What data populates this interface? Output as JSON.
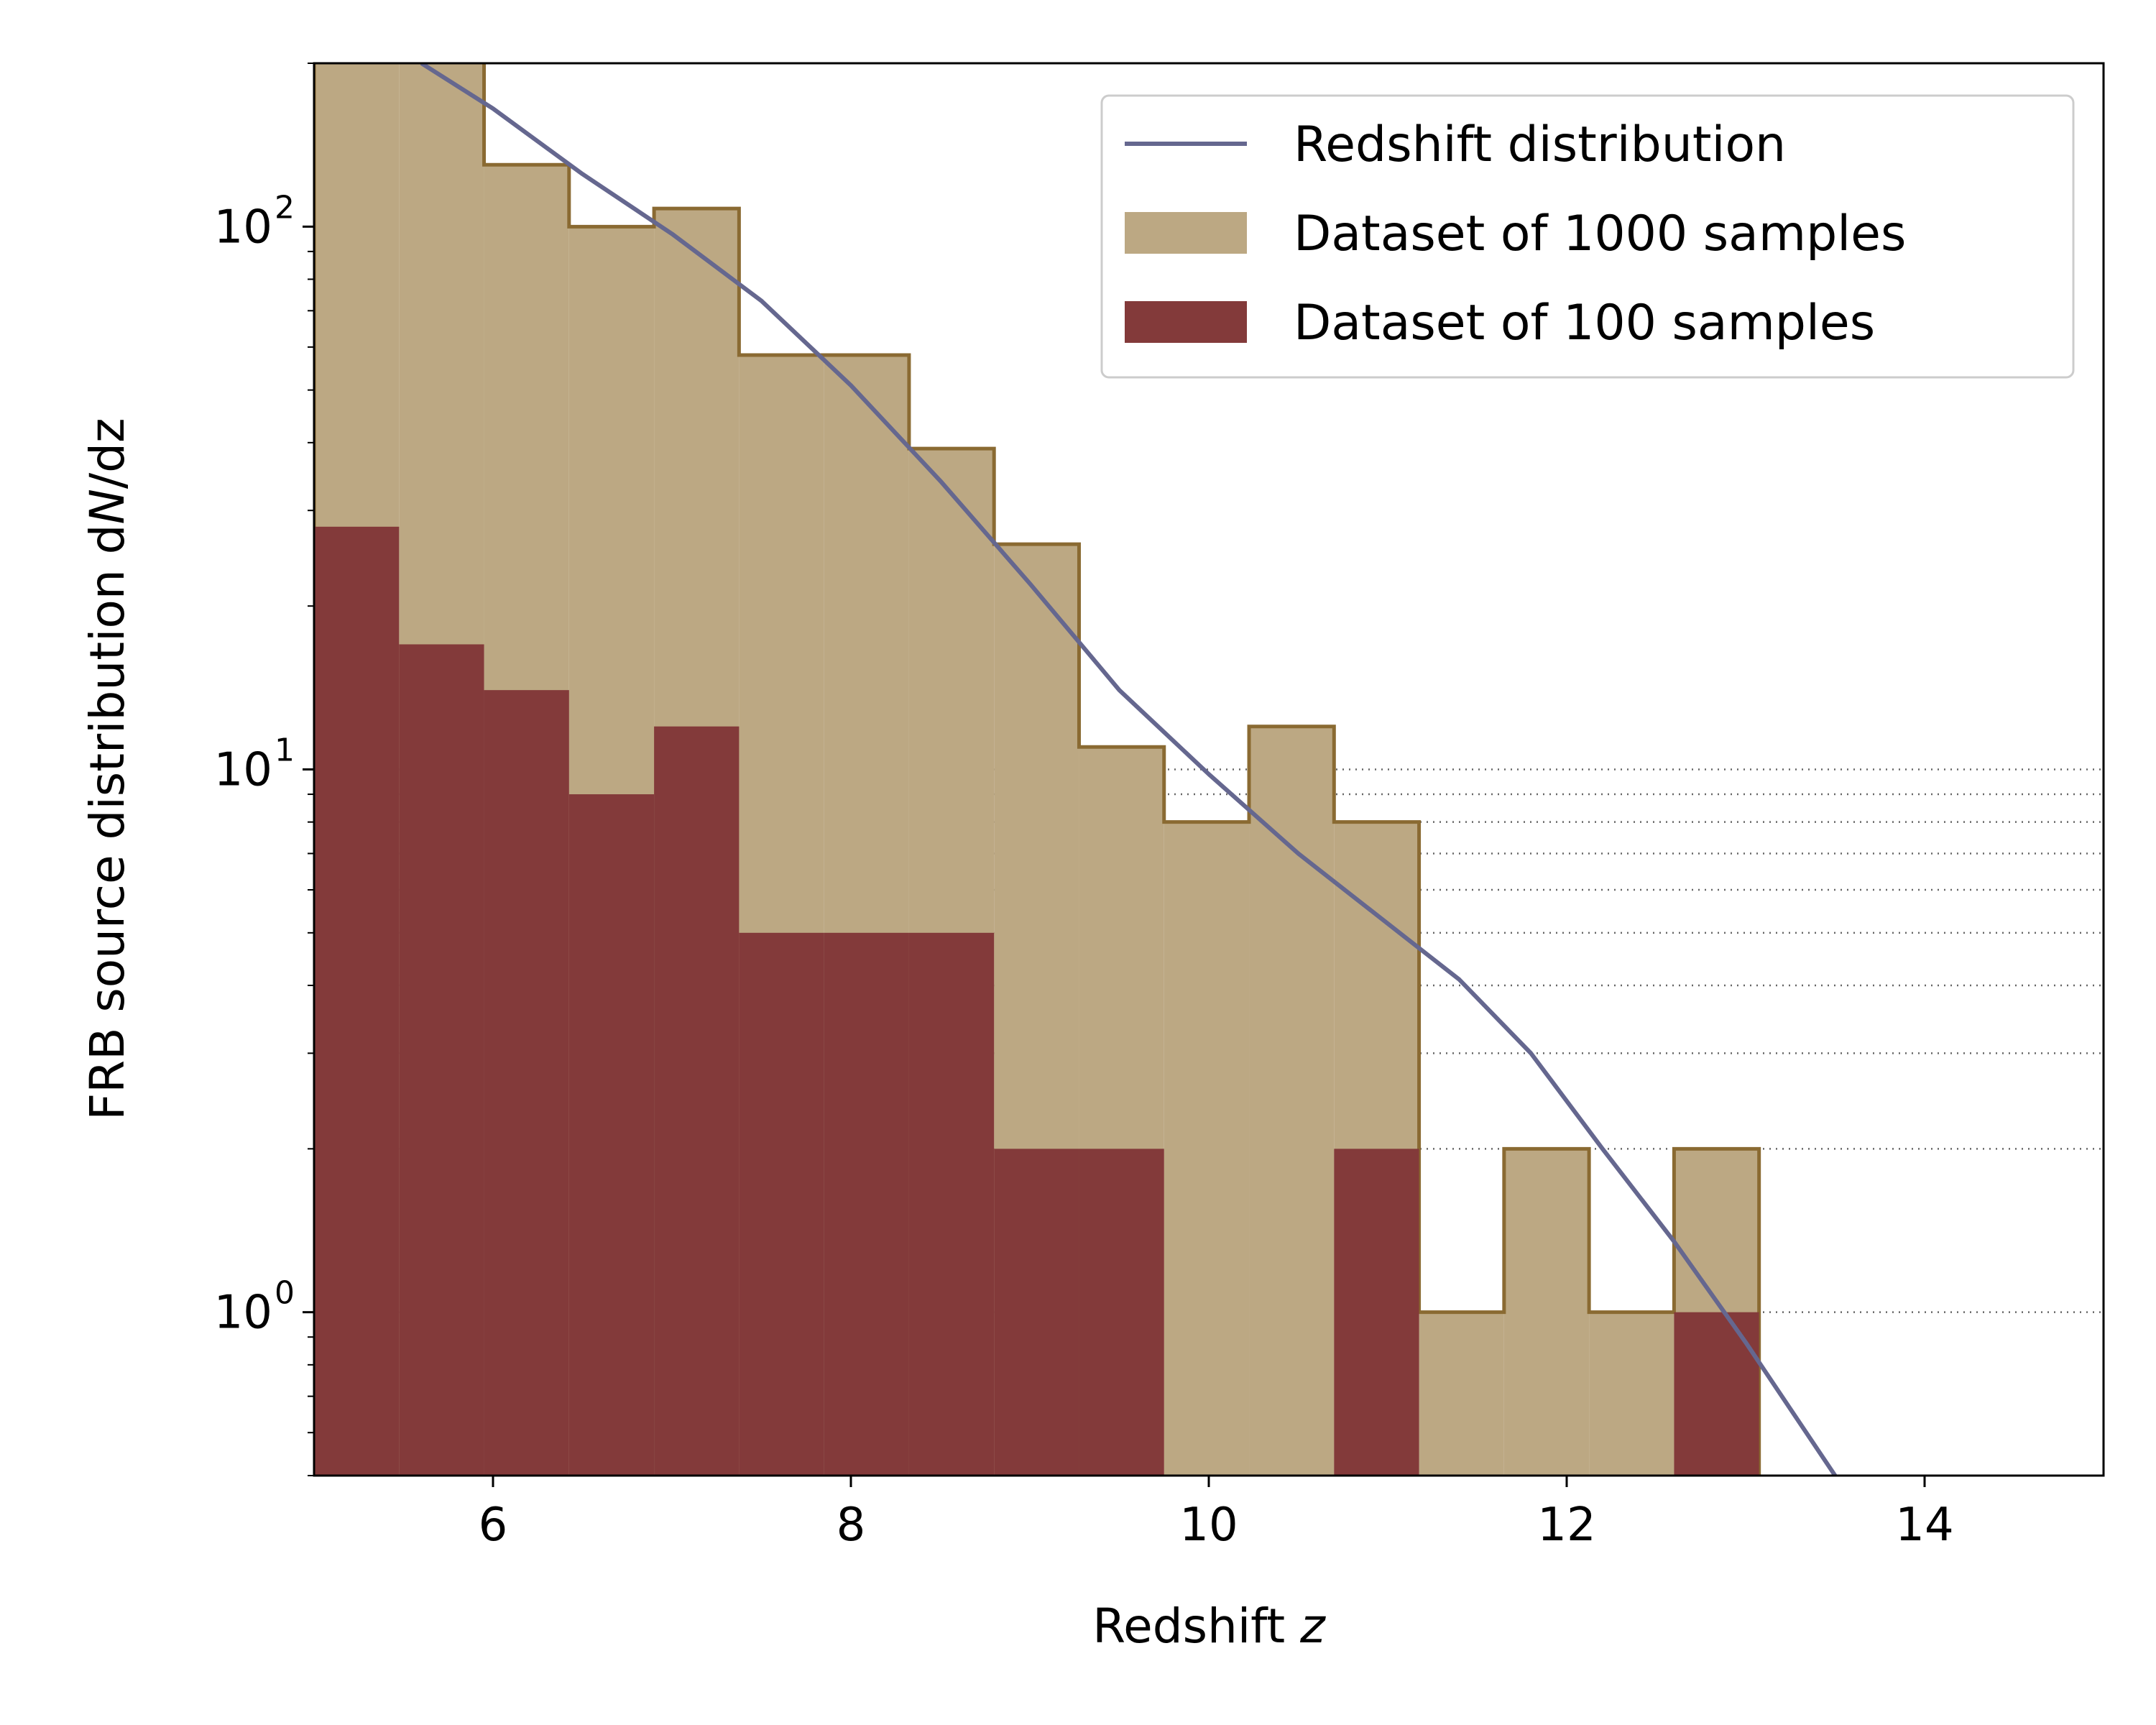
{
  "chart_data": {
    "type": "bar",
    "xlabel": "Redshift",
    "xlabel_var": "z",
    "ylabel_prefix": "FRB source distribution d",
    "ylabel_var": "N",
    "ylabel_suffix": "/dz",
    "xlim": [
      5.0,
      15.0
    ],
    "ylim": [
      0.5,
      200
    ],
    "yscale": "log",
    "x_ticks": [
      {
        "value": 6,
        "label": "6"
      },
      {
        "value": 8,
        "label": "8"
      },
      {
        "value": 10,
        "label": "10"
      },
      {
        "value": 12,
        "label": "12"
      },
      {
        "value": 14,
        "label": "14"
      }
    ],
    "y_ticks": [
      {
        "value": 1,
        "base": "10",
        "exp": "0"
      },
      {
        "value": 10,
        "base": "10",
        "exp": "1"
      },
      {
        "value": 100,
        "base": "10",
        "exp": "2"
      }
    ],
    "grid": "dotted horizontal lines at y minor and major ticks from 1 to 10",
    "legend_position": "top-right",
    "colors": {
      "hist_1000_fill": "#bca883",
      "hist_1000_edge": "#8a6a32",
      "hist_100_fill": "#833a3a",
      "curve": "#65678f"
    },
    "bin_edges": [
      5.0,
      5.475,
      5.95,
      6.425,
      6.9,
      7.375,
      7.85,
      8.325,
      8.8,
      9.275,
      9.75,
      10.225,
      10.7,
      11.175,
      11.65,
      12.125,
      12.6,
      13.075
    ],
    "series": [
      {
        "name": "Dataset of 1000 samples",
        "kind": "histogram",
        "values": [
          250,
          210,
          130,
          100,
          108,
          58,
          58,
          39,
          26,
          11,
          8,
          12,
          8,
          1,
          2,
          1,
          2
        ]
      },
      {
        "name": "Dataset of 100 samples",
        "kind": "histogram",
        "values": [
          28,
          17,
          14,
          9,
          12,
          5,
          5,
          5,
          2,
          2,
          0,
          0,
          2,
          0,
          0,
          0,
          1
        ]
      },
      {
        "name": "Redshift distribution",
        "kind": "line",
        "x": [
          5.6,
          6.0,
          6.5,
          7.0,
          7.5,
          8.0,
          8.5,
          9.0,
          9.5,
          10.0,
          10.5,
          11.1,
          11.4,
          11.8,
          12.2,
          12.6,
          13.0,
          13.5
        ],
        "y": [
          200,
          165,
          125,
          97,
          73,
          51,
          34,
          22,
          14,
          9.8,
          7.0,
          4.9,
          4.1,
          3.0,
          2.0,
          1.35,
          0.88,
          0.5
        ]
      }
    ]
  }
}
